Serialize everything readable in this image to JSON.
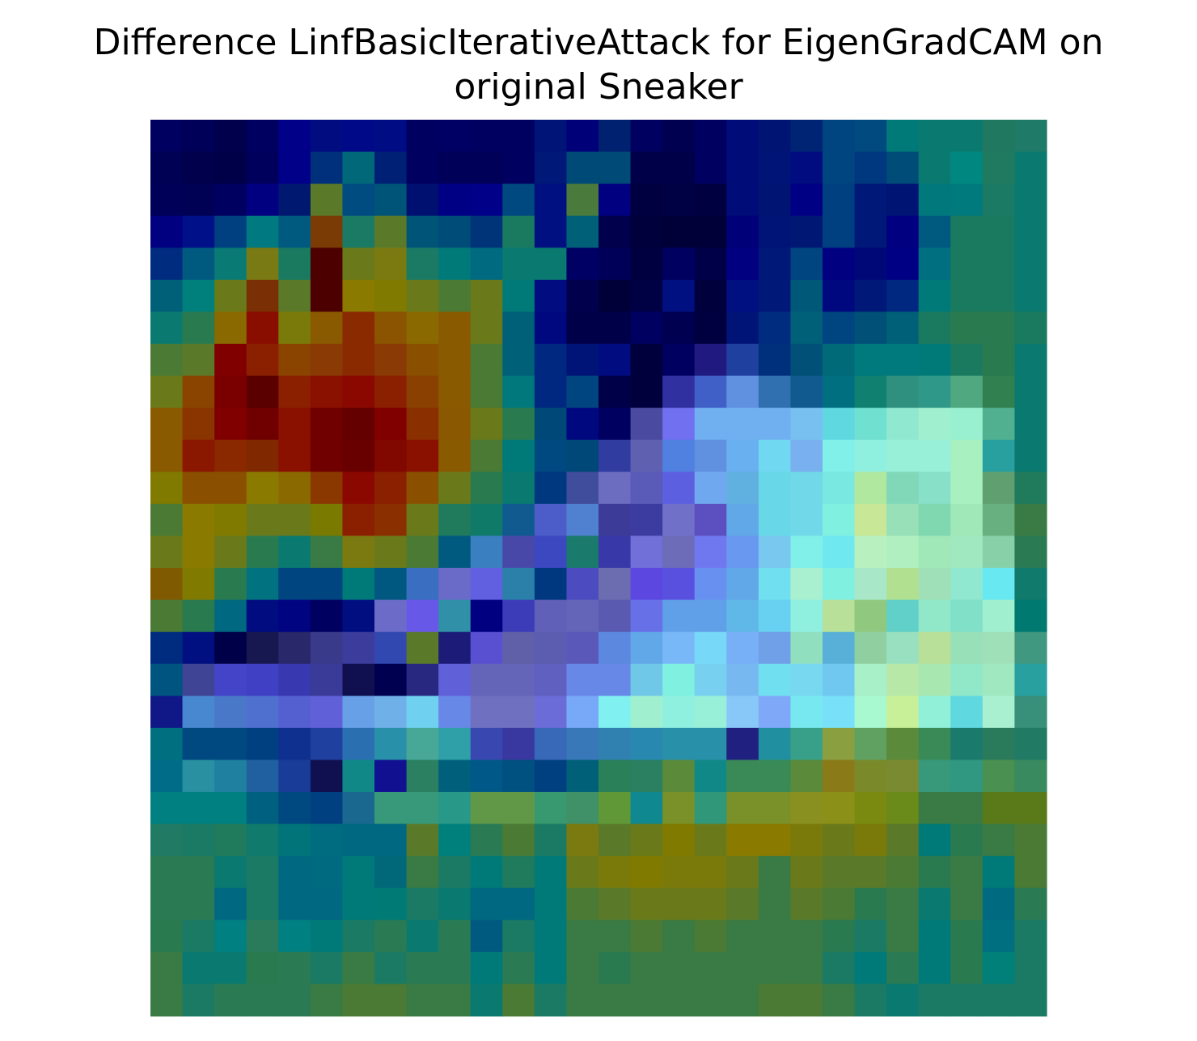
{
  "chart_data": {
    "type": "heatmap",
    "title_lines": [
      "Difference LinfBasicIterativeAttack for EigenGradCAM on",
      "original Sneaker"
    ],
    "xlabel": "",
    "ylabel": "",
    "axes_visible": false,
    "grid": false,
    "legend": "none",
    "rows": 28,
    "cols": 28,
    "cell_colors": [
      [
        "#000060",
        "#000058",
        "#00004c",
        "#000060",
        "#000088",
        "#000c80",
        "#000a88",
        "#000c84",
        "#000060",
        "#000064",
        "#000060",
        "#000060",
        "#001478",
        "#000078",
        "#002070",
        "#000060",
        "#000050",
        "#000060",
        "#000c78",
        "#001474",
        "#002474",
        "#004480",
        "#004a80",
        "#007a78",
        "#0a7a70",
        "#0a7a70",
        "#207860",
        "#207a68"
      ],
      [
        "#000054",
        "#00004c",
        "#000048",
        "#00005c",
        "#000088",
        "#00307c",
        "#006878",
        "#002076",
        "#000060",
        "#000058",
        "#000058",
        "#000060",
        "#001878",
        "#004a78",
        "#004a78",
        "#000048",
        "#000048",
        "#000060",
        "#000c78",
        "#001478",
        "#000c80",
        "#004480",
        "#003880",
        "#004c78",
        "#0a7a70",
        "#008880",
        "#207a60",
        "#0a7a70"
      ],
      [
        "#000058",
        "#000054",
        "#000060",
        "#000080",
        "#001870",
        "#5a7a2a",
        "#004c80",
        "#005478",
        "#001070",
        "#000084",
        "#000088",
        "#004880",
        "#001080",
        "#4a7a3c",
        "#000080",
        "#000040",
        "#000044",
        "#000040",
        "#000c78",
        "#001474",
        "#000084",
        "#004080",
        "#001878",
        "#001474",
        "#00787c",
        "#007a7c",
        "#1a7a64",
        "#0a7a70"
      ],
      [
        "#000080",
        "#001088",
        "#004080",
        "#007a80",
        "#005a80",
        "#7a3c04",
        "#1a7a64",
        "#5a7a2a",
        "#005478",
        "#004c78",
        "#003478",
        "#1a7a60",
        "#001080",
        "#006078",
        "#00004c",
        "#00003c",
        "#000038",
        "#000038",
        "#000078",
        "#001478",
        "#001874",
        "#004080",
        "#001878",
        "#000080",
        "#005a80",
        "#1a7a60",
        "#1a7a60",
        "#0a7a70"
      ],
      [
        "#002c80",
        "#005a80",
        "#0a7a74",
        "#7a7a14",
        "#1a7a60",
        "#4c0000",
        "#6a7a1a",
        "#7a7a10",
        "#1a7a64",
        "#007a78",
        "#006a80",
        "#0a7a70",
        "#0a7a70",
        "#000064",
        "#000058",
        "#000040",
        "#000060",
        "#000048",
        "#000080",
        "#001878",
        "#004480",
        "#000080",
        "#000878",
        "#000084",
        "#007080",
        "#1a7a60",
        "#1a7a60",
        "#0a7a70"
      ],
      [
        "#006078",
        "#00807c",
        "#6a7a1a",
        "#7a3004",
        "#5a7a2a",
        "#4c0000",
        "#8a7a00",
        "#807a00",
        "#6a7a1a",
        "#4a7a34",
        "#6a7a1a",
        "#007a78",
        "#000c80",
        "#00004c",
        "#000038",
        "#000044",
        "#001080",
        "#00003c",
        "#001080",
        "#001878",
        "#005878",
        "#000880",
        "#001878",
        "#002880",
        "#007a78",
        "#1a7a60",
        "#1a7a60",
        "#0a7a70"
      ],
      [
        "#0a7a70",
        "#2a7a50",
        "#8a6a00",
        "#8a0e00",
        "#7a7a0a",
        "#8a5a00",
        "#8a2a00",
        "#8a5400",
        "#8a6a00",
        "#8a5a00",
        "#6a7a1a",
        "#006078",
        "#000880",
        "#000048",
        "#000048",
        "#000060",
        "#000050",
        "#000040",
        "#001478",
        "#002c80",
        "#006078",
        "#004480",
        "#005078",
        "#006078",
        "#1a7a60",
        "#2a7a50",
        "#2a7a50",
        "#1a7a60"
      ],
      [
        "#4a7a34",
        "#5a7a2a",
        "#800000",
        "#8a2000",
        "#8a4400",
        "#8a3a04",
        "#8a2a00",
        "#8a3a04",
        "#8a5000",
        "#8a5a00",
        "#4a7a34",
        "#006078",
        "#002880",
        "#001478",
        "#000c80",
        "#00003c",
        "#000060",
        "#201a80",
        "#2040a0",
        "#00307c",
        "#005078",
        "#006a78",
        "#007a7c",
        "#007a7c",
        "#007a78",
        "#1a7a60",
        "#2a7a50",
        "#0a7a70"
      ],
      [
        "#6a7a1a",
        "#8a4400",
        "#7a0000",
        "#5a0000",
        "#8a2000",
        "#8a1000",
        "#8a0800",
        "#8a2000",
        "#8a4000",
        "#8a5a00",
        "#4a7a34",
        "#00787c",
        "#002880",
        "#004480",
        "#000048",
        "#00003c",
        "#3030a0",
        "#4060c8",
        "#6090e0",
        "#3070b0",
        "#105a90",
        "#007080",
        "#108070",
        "#309080",
        "#309888",
        "#50a880",
        "#308050",
        "#0a7a70"
      ],
      [
        "#8a5a00",
        "#8a3400",
        "#800000",
        "#700000",
        "#8a1000",
        "#700000",
        "#640000",
        "#800000",
        "#8a3000",
        "#8a5800",
        "#6a7a1a",
        "#2a7a50",
        "#004878",
        "#000880",
        "#000060",
        "#4a4aa0",
        "#7070f0",
        "#70b0f0",
        "#70b0f0",
        "#70b0f0",
        "#78c0f0",
        "#60d8e0",
        "#70e0d0",
        "#90e8d0",
        "#a0f0d0",
        "#98f0d0",
        "#50b090",
        "#0a7a70"
      ],
      [
        "#8a5a00",
        "#8a1800",
        "#8a2800",
        "#802800",
        "#8a1000",
        "#700000",
        "#680000",
        "#800800",
        "#8a1000",
        "#8a5a00",
        "#4a7a34",
        "#007a78",
        "#004880",
        "#004878",
        "#303ca0",
        "#6060b0",
        "#5080e0",
        "#6090e0",
        "#68b0f0",
        "#70d8f0",
        "#78b0f0",
        "#80f0e8",
        "#90f0e0",
        "#98f0d8",
        "#98f0d8",
        "#a8f0c0",
        "#28a0a0",
        "#0a7a70"
      ],
      [
        "#807a00",
        "#8a5000",
        "#8a5000",
        "#8a7a00",
        "#8a6a00",
        "#8a3800",
        "#8a0800",
        "#8a2000",
        "#8a5000",
        "#6a7a1a",
        "#2a7a50",
        "#0a7a70",
        "#003880",
        "#404c9c",
        "#6c6cc0",
        "#5a5ab8",
        "#5c60e0",
        "#70a8f0",
        "#60b0e0",
        "#68d8e8",
        "#70d8e8",
        "#78e8e0",
        "#b0e8a0",
        "#80d8b8",
        "#88e0c8",
        "#a8f0c0",
        "#60a070",
        "#207a5c"
      ],
      [
        "#4a7a34",
        "#8a7a00",
        "#807a00",
        "#6a7a1a",
        "#6a7a1a",
        "#7a7a00",
        "#8a2000",
        "#8a3000",
        "#6a7a1a",
        "#207a5c",
        "#107a68",
        "#105a90",
        "#4c5cc8",
        "#5080d0",
        "#3c3c98",
        "#3c3ca0",
        "#7070c8",
        "#5c50c0",
        "#60a8e8",
        "#68d8e8",
        "#70d8e8",
        "#80f0e0",
        "#c8e898",
        "#98e0b8",
        "#80d8b0",
        "#a0e8b8",
        "#68b080",
        "#3a7a44"
      ],
      [
        "#6a7a1a",
        "#8a7a00",
        "#6a7a1a",
        "#2a7a50",
        "#0a7a70",
        "#3a7a44",
        "#7a7a10",
        "#6a7a1a",
        "#4a7a34",
        "#005a80",
        "#3a80c0",
        "#4848a8",
        "#3c48c0",
        "#1a7a6c",
        "#3838a8",
        "#7070d8",
        "#6c6cb8",
        "#7078f0",
        "#6898f0",
        "#78c8f0",
        "#80f0e8",
        "#70e8f0",
        "#b8f0c0",
        "#b0f0c0",
        "#a0e8b8",
        "#a0e8c0",
        "#88d0a8",
        "#2a7a54"
      ],
      [
        "#805a00",
        "#807a00",
        "#2a7a50",
        "#007280",
        "#004480",
        "#004480",
        "#007a78",
        "#005880",
        "#3a6ec0",
        "#6a6ac8",
        "#6060e0",
        "#2a80a8",
        "#003880",
        "#4c4cc0",
        "#6c6cb0",
        "#5c48e0",
        "#5a50e0",
        "#6890f0",
        "#60a8e8",
        "#70e0f0",
        "#a8f0d0",
        "#80f0e0",
        "#a8e8c8",
        "#b0e090",
        "#a0e0b8",
        "#90e8d0",
        "#68e8f0",
        "#107a6c"
      ],
      [
        "#4a7a34",
        "#2a7a50",
        "#006880",
        "#000c80",
        "#000480",
        "#000060",
        "#000e80",
        "#6c6cc8",
        "#6858e8",
        "#3090a8",
        "#000080",
        "#3c3cb8",
        "#6060b8",
        "#6464b8",
        "#5a5ab0",
        "#6870e8",
        "#60a0e8",
        "#60a0e8",
        "#60b8e8",
        "#68d0f0",
        "#90f0e0",
        "#b8e098",
        "#90c880",
        "#60d0c8",
        "#90e8c8",
        "#80e0c8",
        "#a0f0d0",
        "#007a70"
      ],
      [
        "#002c80",
        "#001080",
        "#000048",
        "#181850",
        "#28286a",
        "#3a3a8a",
        "#3c3c9c",
        "#3048b0",
        "#5a7a2a",
        "#1c1c78",
        "#5850d0",
        "#6060a8",
        "#5c5cb0",
        "#5a58b8",
        "#5c88e0",
        "#60a8e8",
        "#78b8f8",
        "#78d8f8",
        "#78b0f8",
        "#70a0e8",
        "#90e0c0",
        "#58b0d8",
        "#90d0a0",
        "#98e0c0",
        "#b8e098",
        "#98e0b8",
        "#a0e0b8",
        "#409880"
      ],
      [
        "#005480",
        "#404494",
        "#4444c8",
        "#4040c4",
        "#3838b0",
        "#3a3a98",
        "#101050",
        "#000050",
        "#282880",
        "#6060d8",
        "#6464b8",
        "#6464b8",
        "#6060c0",
        "#6888e8",
        "#6888e8",
        "#70c8e8",
        "#80f0e0",
        "#78d0f0",
        "#78b8f0",
        "#70e0f0",
        "#78d8f0",
        "#70c8f0",
        "#a8f0c8",
        "#b8e8a8",
        "#a8e8b0",
        "#90e8c8",
        "#a0e8c0",
        "#28a0a0"
      ],
      [
        "#101888",
        "#4888d0",
        "#4a78c8",
        "#5070d0",
        "#5460d0",
        "#6060d8",
        "#68a0e8",
        "#70b0e8",
        "#70d0f0",
        "#6888e8",
        "#7070c0",
        "#7070c0",
        "#6c6cd8",
        "#78a8f8",
        "#80f0f0",
        "#a0f0d0",
        "#90f0e0",
        "#98f0d8",
        "#88c8f8",
        "#80a8f8",
        "#78e8f0",
        "#78e0f8",
        "#a8f8d0",
        "#c8f098",
        "#90f0d8",
        "#60d8e0",
        "#a8f0d0",
        "#38907a"
      ],
      [
        "#007080",
        "#004880",
        "#004880",
        "#004080",
        "#103090",
        "#2040a0",
        "#2a70b0",
        "#2890a8",
        "#48a898",
        "#30a0a8",
        "#3848b0",
        "#3838a0",
        "#3868b8",
        "#3878b8",
        "#3080b0",
        "#2888b0",
        "#2890a8",
        "#2890a8",
        "#202080",
        "#2090a0",
        "#38a088",
        "#8aa040",
        "#60a060",
        "#5a8a3a",
        "#3a8a58",
        "#1a7a6c",
        "#2a7a5c",
        "#207a64"
      ],
      [
        "#006c88",
        "#2890a0",
        "#2080a0",
        "#2060a0",
        "#183c98",
        "#101050",
        "#108888",
        "#101090",
        "#2a8060",
        "#00607c",
        "#005888",
        "#005080",
        "#004080",
        "#006078",
        "#2a8058",
        "#2a8060",
        "#5a8a3a",
        "#108888",
        "#3a8a58",
        "#3a8a58",
        "#5a8a3a",
        "#8a7a18",
        "#7a8a2a",
        "#7a8a30",
        "#38987a",
        "#309880",
        "#4a9050",
        "#3a8a60"
      ],
      [
        "#008080",
        "#008080",
        "#008080",
        "#006080",
        "#004880",
        "#004080",
        "#1a6890",
        "#38987a",
        "#38987a",
        "#289888",
        "#609848",
        "#609848",
        "#389870",
        "#409068",
        "#609838",
        "#108890",
        "#7a9028",
        "#309878",
        "#7a9028",
        "#7a9028",
        "#8a9020",
        "#8a9018",
        "#7a8a10",
        "#6a8a1a",
        "#3a7a44",
        "#3a7a44",
        "#5a7a1a",
        "#5a7a1a"
      ],
      [
        "#207a64",
        "#1a7a64",
        "#207a5c",
        "#107a6c",
        "#007478",
        "#006c80",
        "#006880",
        "#006880",
        "#5a7a2a",
        "#00807c",
        "#2a7a54",
        "#4a7a34",
        "#1a7a64",
        "#7a7a10",
        "#5a7a2a",
        "#6a7a1a",
        "#807a00",
        "#6a7a1a",
        "#8a7a00",
        "#8a7a00",
        "#7a7a0a",
        "#6a7a1a",
        "#7a7a0a",
        "#5a7a2a",
        "#007a78",
        "#2a7a50",
        "#3a7a44",
        "#4a7a34"
      ],
      [
        "#2a7a54",
        "#2a7a54",
        "#0a7a70",
        "#1a7a64",
        "#006880",
        "#006a80",
        "#007a78",
        "#006878",
        "#3a7a44",
        "#1a7a64",
        "#007a78",
        "#207a5c",
        "#007a78",
        "#6a7a1a",
        "#7a7a0a",
        "#807a00",
        "#7a7a0a",
        "#7a7a0a",
        "#6a7a1a",
        "#3a7a44",
        "#6a7a1a",
        "#5a7a2a",
        "#5a7a2a",
        "#4a7a34",
        "#2a7a50",
        "#3a7a44",
        "#007a78",
        "#4a7a34"
      ],
      [
        "#2a7a54",
        "#2a7a54",
        "#006880",
        "#1a7a64",
        "#006880",
        "#006880",
        "#007a78",
        "#007a74",
        "#1a7a64",
        "#0a7a70",
        "#006880",
        "#006880",
        "#007a78",
        "#4a7a34",
        "#5a7a2a",
        "#6a7a1a",
        "#6a7a1a",
        "#6a7a1a",
        "#5a7a2a",
        "#3a7a44",
        "#5a7a2a",
        "#4a7a34",
        "#2a7a50",
        "#3a7a44",
        "#0a7a70",
        "#3a7a44",
        "#006a80",
        "#2a7a54"
      ],
      [
        "#2a7a50",
        "#1a7a64",
        "#008080",
        "#2a7a5c",
        "#008080",
        "#007a78",
        "#1a7a64",
        "#2a7a54",
        "#0a7a70",
        "#2a7a54",
        "#005a80",
        "#1a7a64",
        "#007a78",
        "#3a7a44",
        "#3a7a44",
        "#4a7a34",
        "#3a7a44",
        "#4a7a34",
        "#3a7a44",
        "#3a7a44",
        "#3a7a44",
        "#2a7a50",
        "#1a7a64",
        "#3a7a44",
        "#007a78",
        "#2a7a50",
        "#007080",
        "#1a7a64"
      ],
      [
        "#3a7a44",
        "#0a7a70",
        "#0a7a70",
        "#2a7a50",
        "#2a7a54",
        "#1a7a64",
        "#3a7a44",
        "#1a7a64",
        "#2a7a54",
        "#2a7a54",
        "#007a78",
        "#2a7a54",
        "#007a78",
        "#3a7a44",
        "#2a7a50",
        "#3a7a44",
        "#3a7a44",
        "#3a7a44",
        "#3a7a44",
        "#3a7a44",
        "#3a7a44",
        "#1a7a64",
        "#007a78",
        "#2a7a54",
        "#007a78",
        "#2a7a50",
        "#008078",
        "#1a7a64"
      ],
      [
        "#3a7a44",
        "#1a7a64",
        "#2a7a54",
        "#2a7a54",
        "#2a7a54",
        "#3a7a44",
        "#4a7a34",
        "#4a7a34",
        "#3a7a44",
        "#3a7a44",
        "#0a7a70",
        "#4a7a34",
        "#1a7a64",
        "#3a7a44",
        "#3a7a44",
        "#3a7a44",
        "#3a7a44",
        "#3a7a44",
        "#3a7a44",
        "#4a7a34",
        "#4a7a34",
        "#3a7a44",
        "#1a7a64",
        "#0a7a70",
        "#1a7a64",
        "#1a7a64",
        "#1a7a64",
        "#1a7a64"
      ]
    ]
  }
}
